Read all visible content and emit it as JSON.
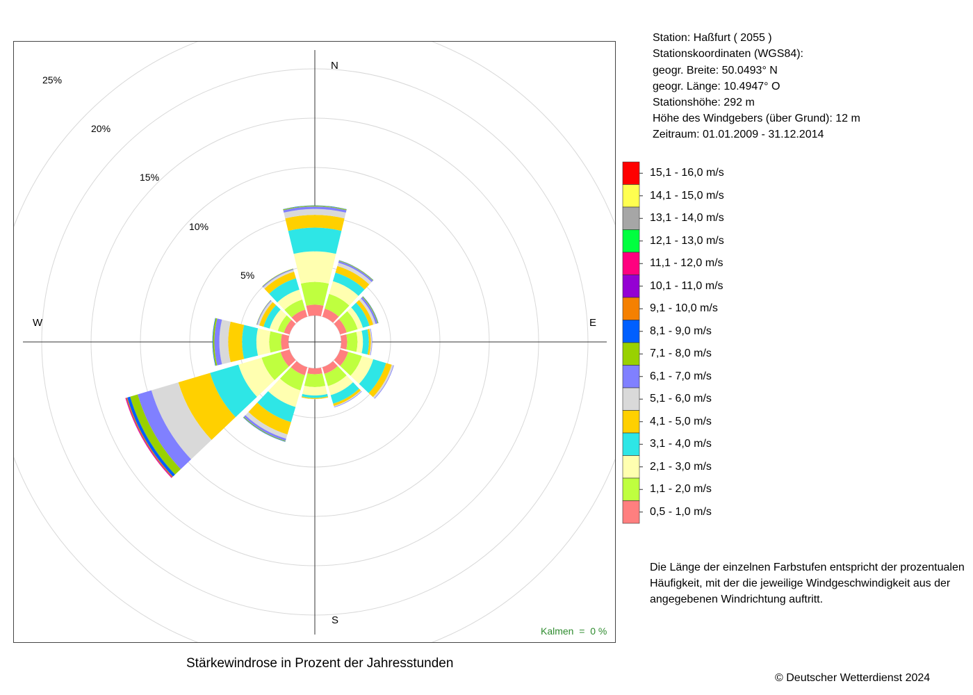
{
  "station": {
    "line1": "Station:  Haßfurt  ( 2055 )",
    "line2": "Stationskoordinaten (WGS84):",
    "line3": "geogr. Breite: 50.0493° N",
    "line4": "geogr. Länge: 10.4947° O",
    "line5": "Stationshöhe: 292 m",
    "line6": "Höhe des Windgebers (über Grund): 12 m",
    "line7": "Zeitraum: 01.01.2009 - 31.12.2014"
  },
  "compass": {
    "n": "N",
    "e": "E",
    "s": "S",
    "w": "W"
  },
  "calm_text": "Kalmen  =  0 %",
  "caption": "Stärkewindrose in Prozent der Jahresstunden",
  "note": "Die Länge der einzelnen Farbstufen entspricht der prozentualen Häufigkeit, mit der die jeweilige Windgeschwindigkeit aus der angegebenen Windrichtung auftritt.",
  "copyright": "© Deutscher Wetterdienst  2024",
  "chart_data": {
    "type": "wind-rose",
    "title": "Stärkewindrose in Prozent der Jahresstunden",
    "radial_unit": "%",
    "ring_labels": [
      "5%",
      "10%",
      "15%",
      "20%",
      "25%"
    ],
    "ring_values": [
      5,
      10,
      15,
      20,
      25
    ],
    "directions_deg": [
      0,
      30,
      60,
      90,
      120,
      150,
      180,
      210,
      240,
      270,
      300,
      330
    ],
    "speed_classes": [
      {
        "label": "0,5 - 1,0 m/s",
        "color": "#FF7F7F"
      },
      {
        "label": "1,1 - 2,0 m/s",
        "color": "#BFFF3F"
      },
      {
        "label": "2,1 - 3,0 m/s",
        "color": "#FFFFB0"
      },
      {
        "label": "3,1 - 4,0 m/s",
        "color": "#2EE6E6"
      },
      {
        "label": "4,1 - 5,0 m/s",
        "color": "#FFD000"
      },
      {
        "label": "5,1 - 6,0 m/s",
        "color": "#D9D9D9"
      },
      {
        "label": "6,1 - 7,0 m/s",
        "color": "#8080FF"
      },
      {
        "label": "7,1 - 8,0 m/s",
        "color": "#99D100"
      },
      {
        "label": "8,1 - 9,0 m/s",
        "color": "#005FFF"
      },
      {
        "label": "9,1 - 10,0 m/s",
        "color": "#F58000"
      },
      {
        "label": "10,1 - 11,0 m/s",
        "color": "#9400D3"
      },
      {
        "label": "11,1 - 12,0 m/s",
        "color": "#FF007F"
      },
      {
        "label": "12,1 - 13,0 m/s",
        "color": "#00FF3F"
      },
      {
        "label": "13,1 - 14,0 m/s",
        "color": "#A6A6A6"
      },
      {
        "label": "14,1 - 15,0 m/s",
        "color": "#FFFF50"
      },
      {
        "label": "15,1 - 16,0 m/s",
        "color": "#FF0000"
      }
    ],
    "series": [
      {
        "direction": 0,
        "values": [
          1.1,
          2.3,
          3.1,
          2.4,
          1.3,
          0.6,
          0.25,
          0.08,
          0.03
        ]
      },
      {
        "direction": 30,
        "values": [
          0.85,
          1.55,
          1.35,
          0.9,
          0.7,
          0.35,
          0.18,
          0.06,
          0.02
        ]
      },
      {
        "direction": 60,
        "values": [
          0.7,
          1.15,
          0.55,
          0.7,
          0.4,
          0.25,
          0.2,
          0.07,
          0.03
        ]
      },
      {
        "direction": 90,
        "values": [
          0.6,
          1.05,
          0.55,
          0.6,
          0.2,
          0.1,
          0.04
        ]
      },
      {
        "direction": 120,
        "values": [
          0.85,
          1.45,
          1.2,
          1.35,
          0.6,
          0.18,
          0.06
        ]
      },
      {
        "direction": 150,
        "values": [
          0.7,
          1.3,
          0.95,
          0.9,
          0.25,
          0.1,
          0.05
        ]
      },
      {
        "direction": 180,
        "values": [
          0.6,
          1.3,
          0.85,
          0.25,
          0.1,
          0.03
        ]
      },
      {
        "direction": 210,
        "values": [
          0.85,
          1.6,
          1.75,
          1.6,
          1.3,
          0.45,
          0.22,
          0.07,
          0.04
        ]
      },
      {
        "direction": 240,
        "values": [
          0.95,
          2.0,
          2.45,
          3.0,
          3.35,
          2.85,
          1.45,
          0.8,
          0.3,
          0.1,
          0.05,
          0.05
        ]
      },
      {
        "direction": 270,
        "values": [
          0.75,
          1.2,
          1.3,
          1.45,
          1.4,
          0.9,
          0.5,
          0.15,
          0.05
        ]
      },
      {
        "direction": 300,
        "values": [
          0.6,
          0.65,
          0.85,
          0.65,
          0.45,
          0.2,
          0.07,
          0.03
        ]
      },
      {
        "direction": 330,
        "values": [
          0.75,
          1.05,
          1.05,
          1.2,
          0.7,
          0.2,
          0.09,
          0.04
        ]
      }
    ]
  }
}
